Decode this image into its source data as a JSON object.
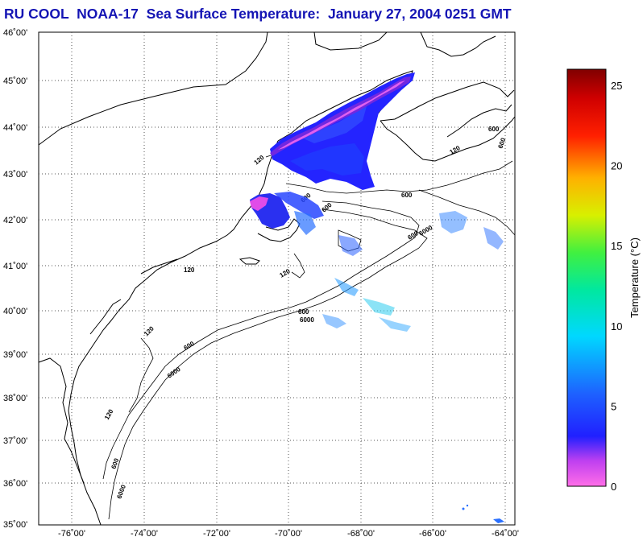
{
  "title": "RU COOL  NOAA-17  Sea Surface Temperature:  January 27, 2004 0251 GMT",
  "lat_labels": [
    "46˚00'",
    "45˚00'",
    "44˚00'",
    "43˚00'",
    "42˚00'",
    "41˚00'",
    "40˚00'",
    "39˚00'",
    "38˚00'",
    "37˚00'",
    "36˚00'",
    "35˚00'"
  ],
  "lon_labels": [
    "-76˚00'",
    "-74˚00'",
    "-72˚00'",
    "-70˚00'",
    "-68˚00'",
    "-66˚00'",
    "-64˚00'"
  ],
  "contour_labels": [
    "120",
    "600",
    "6000"
  ],
  "colorbar": {
    "label": "Temperature (°C)",
    "ticks": [
      "0",
      "5",
      "10",
      "15",
      "20",
      "25"
    ],
    "min": 0,
    "max": 26
  },
  "colors": {
    "title": "#1414b4",
    "cold": "#ff40ff",
    "mid": "#1432ff",
    "warm": "#800000"
  }
}
